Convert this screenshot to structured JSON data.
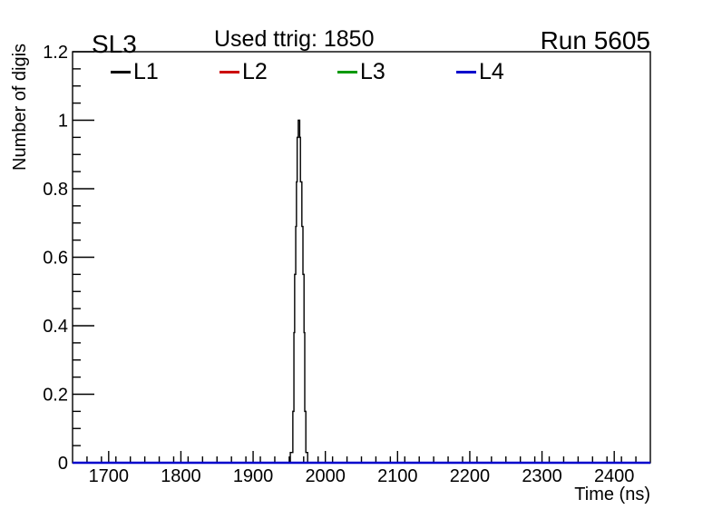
{
  "window": {
    "background": "#ffffff"
  },
  "header": {
    "left_title": "SL3",
    "center_title": "Used ttrig: 1850",
    "right_title": "Run 5605"
  },
  "legend": {
    "position": "top-inside",
    "items": [
      {
        "label": "L1",
        "color": "#000000"
      },
      {
        "label": "L2",
        "color": "#cc0000"
      },
      {
        "label": "L3",
        "color": "#009900"
      },
      {
        "label": "L4",
        "color": "#0000cc"
      }
    ]
  },
  "chart_data": {
    "type": "line",
    "title": "Used ttrig: 1850",
    "xlabel": "Time (ns)",
    "ylabel": "Number of digis",
    "xlim": [
      1650,
      2450
    ],
    "ylim": [
      0,
      1.2
    ],
    "xticks": [
      1700,
      1800,
      1900,
      2000,
      2100,
      2200,
      2300,
      2400
    ],
    "yticks": [
      {
        "value": 0,
        "label": "0"
      },
      {
        "value": 0.2,
        "label": "0.2"
      },
      {
        "value": 0.4,
        "label": "0.4"
      },
      {
        "value": 0.6,
        "label": "0.6"
      },
      {
        "value": 0.8,
        "label": "0.8"
      },
      {
        "value": 1,
        "label": "1"
      },
      {
        "value": 1.2,
        "label": "1.2"
      }
    ],
    "x_minor_step": 20,
    "y_minor_step": 0.05,
    "grid": false,
    "legend_position": "top",
    "series": [
      {
        "name": "L1",
        "color": "#000000",
        "width": 1.4,
        "style": "steps",
        "points": [
          [
            1650,
            0
          ],
          [
            1951.5,
            0
          ],
          [
            1951.5,
            0.03
          ],
          [
            1955,
            0.03
          ],
          [
            1955,
            0.15
          ],
          [
            1956.5,
            0.15
          ],
          [
            1956.5,
            0.38
          ],
          [
            1957.5,
            0.38
          ],
          [
            1957.5,
            0.55
          ],
          [
            1959,
            0.55
          ],
          [
            1959,
            0.69
          ],
          [
            1960,
            0.69
          ],
          [
            1960,
            0.82
          ],
          [
            1961,
            0.82
          ],
          [
            1961,
            0.95
          ],
          [
            1962.5,
            0.95
          ],
          [
            1962.5,
            1.0
          ],
          [
            1964.5,
            1.0
          ],
          [
            1964.5,
            0.95
          ],
          [
            1965.5,
            0.95
          ],
          [
            1965.5,
            0.82
          ],
          [
            1967.5,
            0.82
          ],
          [
            1967.5,
            0.69
          ],
          [
            1969,
            0.69
          ],
          [
            1969,
            0.55
          ],
          [
            1970.5,
            0.55
          ],
          [
            1970.5,
            0.38
          ],
          [
            1971.5,
            0.38
          ],
          [
            1971.5,
            0.15
          ],
          [
            1973,
            0.15
          ],
          [
            1973,
            0.03
          ],
          [
            1975.5,
            0.03
          ],
          [
            1975.5,
            0
          ],
          [
            2450,
            0
          ]
        ]
      },
      {
        "name": "L2",
        "color": "#cc0000",
        "width": 1.4,
        "style": "steps",
        "points": [
          [
            1650,
            0
          ],
          [
            2450,
            0
          ]
        ]
      },
      {
        "name": "L3",
        "color": "#009900",
        "width": 1.4,
        "style": "steps",
        "points": [
          [
            1650,
            0
          ],
          [
            2450,
            0
          ]
        ]
      },
      {
        "name": "L4",
        "color": "#0000cc",
        "width": 2.6,
        "style": "steps",
        "points": [
          [
            1650,
            0
          ],
          [
            2450,
            0
          ]
        ]
      }
    ]
  }
}
